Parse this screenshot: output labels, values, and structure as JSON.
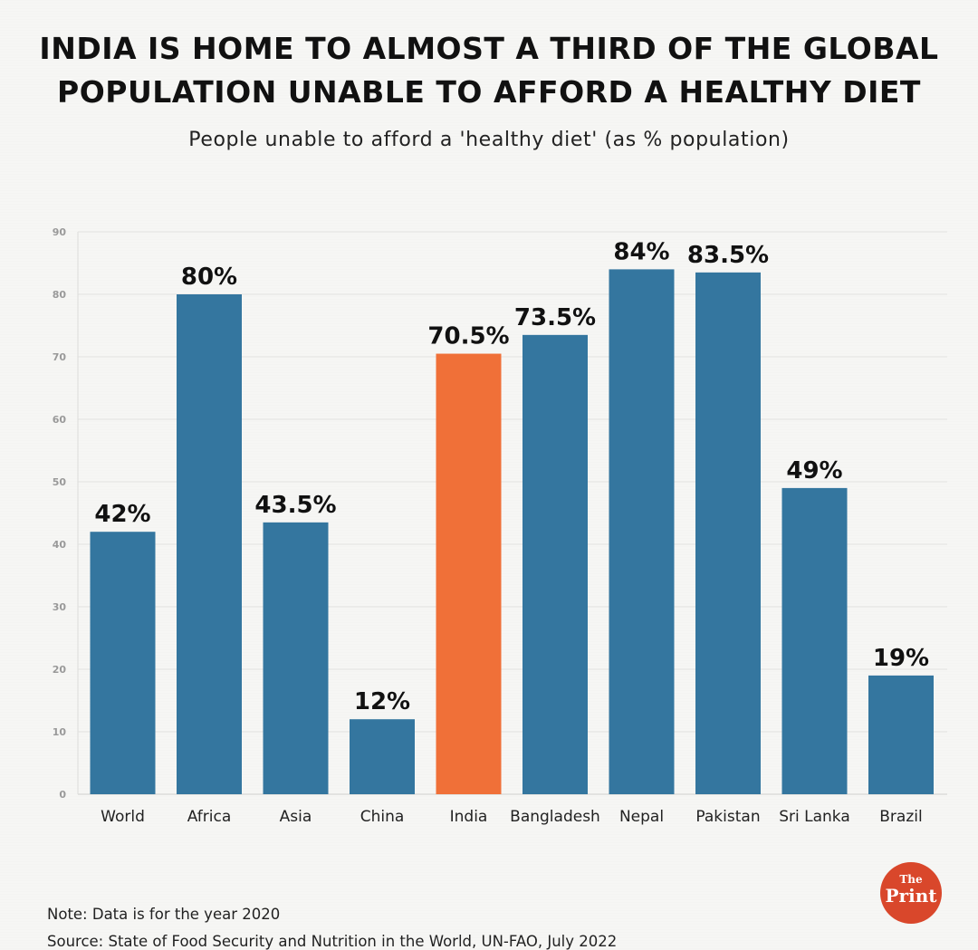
{
  "header": {
    "title_line1": "INDIA IS HOME TO ALMOST A THIRD OF THE GLOBAL",
    "title_line2": "POPULATION UNABLE TO AFFORD A HEALTHY DIET",
    "subtitle": "People unable to afford a 'healthy diet' (as % population)"
  },
  "footer": {
    "note": "Note: Data is for the year 2020",
    "source": "Source: State of Food Security and Nutrition in the World, UN-FAO, July 2022"
  },
  "logo": {
    "the": "The",
    "print": "Print"
  },
  "colors": {
    "bar": "#34769f",
    "highlight": "#f07038",
    "grid": "#e2e2e0",
    "tick_text": "#999999",
    "label_text": "#111111"
  },
  "chart_data": {
    "type": "bar",
    "title": "INDIA IS HOME TO ALMOST A THIRD OF THE GLOBAL POPULATION UNABLE TO AFFORD A HEALTHY DIET",
    "subtitle": "People unable to afford a 'healthy diet' (as % population)",
    "xlabel": "",
    "ylabel": "",
    "categories": [
      "World",
      "Africa",
      "Asia",
      "China",
      "India",
      "Bangladesh",
      "Nepal",
      "Pakistan",
      "Sri Lanka",
      "Brazil"
    ],
    "values": [
      42,
      80,
      43.5,
      12,
      70.5,
      73.5,
      84,
      83.5,
      49,
      19
    ],
    "data_labels": [
      "42%",
      "80%",
      "43.5%",
      "12%",
      "70.5%",
      "73.5%",
      "84%",
      "83.5%",
      "49%",
      "19%"
    ],
    "highlight": "India",
    "ylim": [
      0,
      90
    ],
    "yticks": [
      0,
      10,
      20,
      30,
      40,
      50,
      60,
      70,
      80,
      90
    ],
    "grid": true,
    "legend": "none"
  }
}
